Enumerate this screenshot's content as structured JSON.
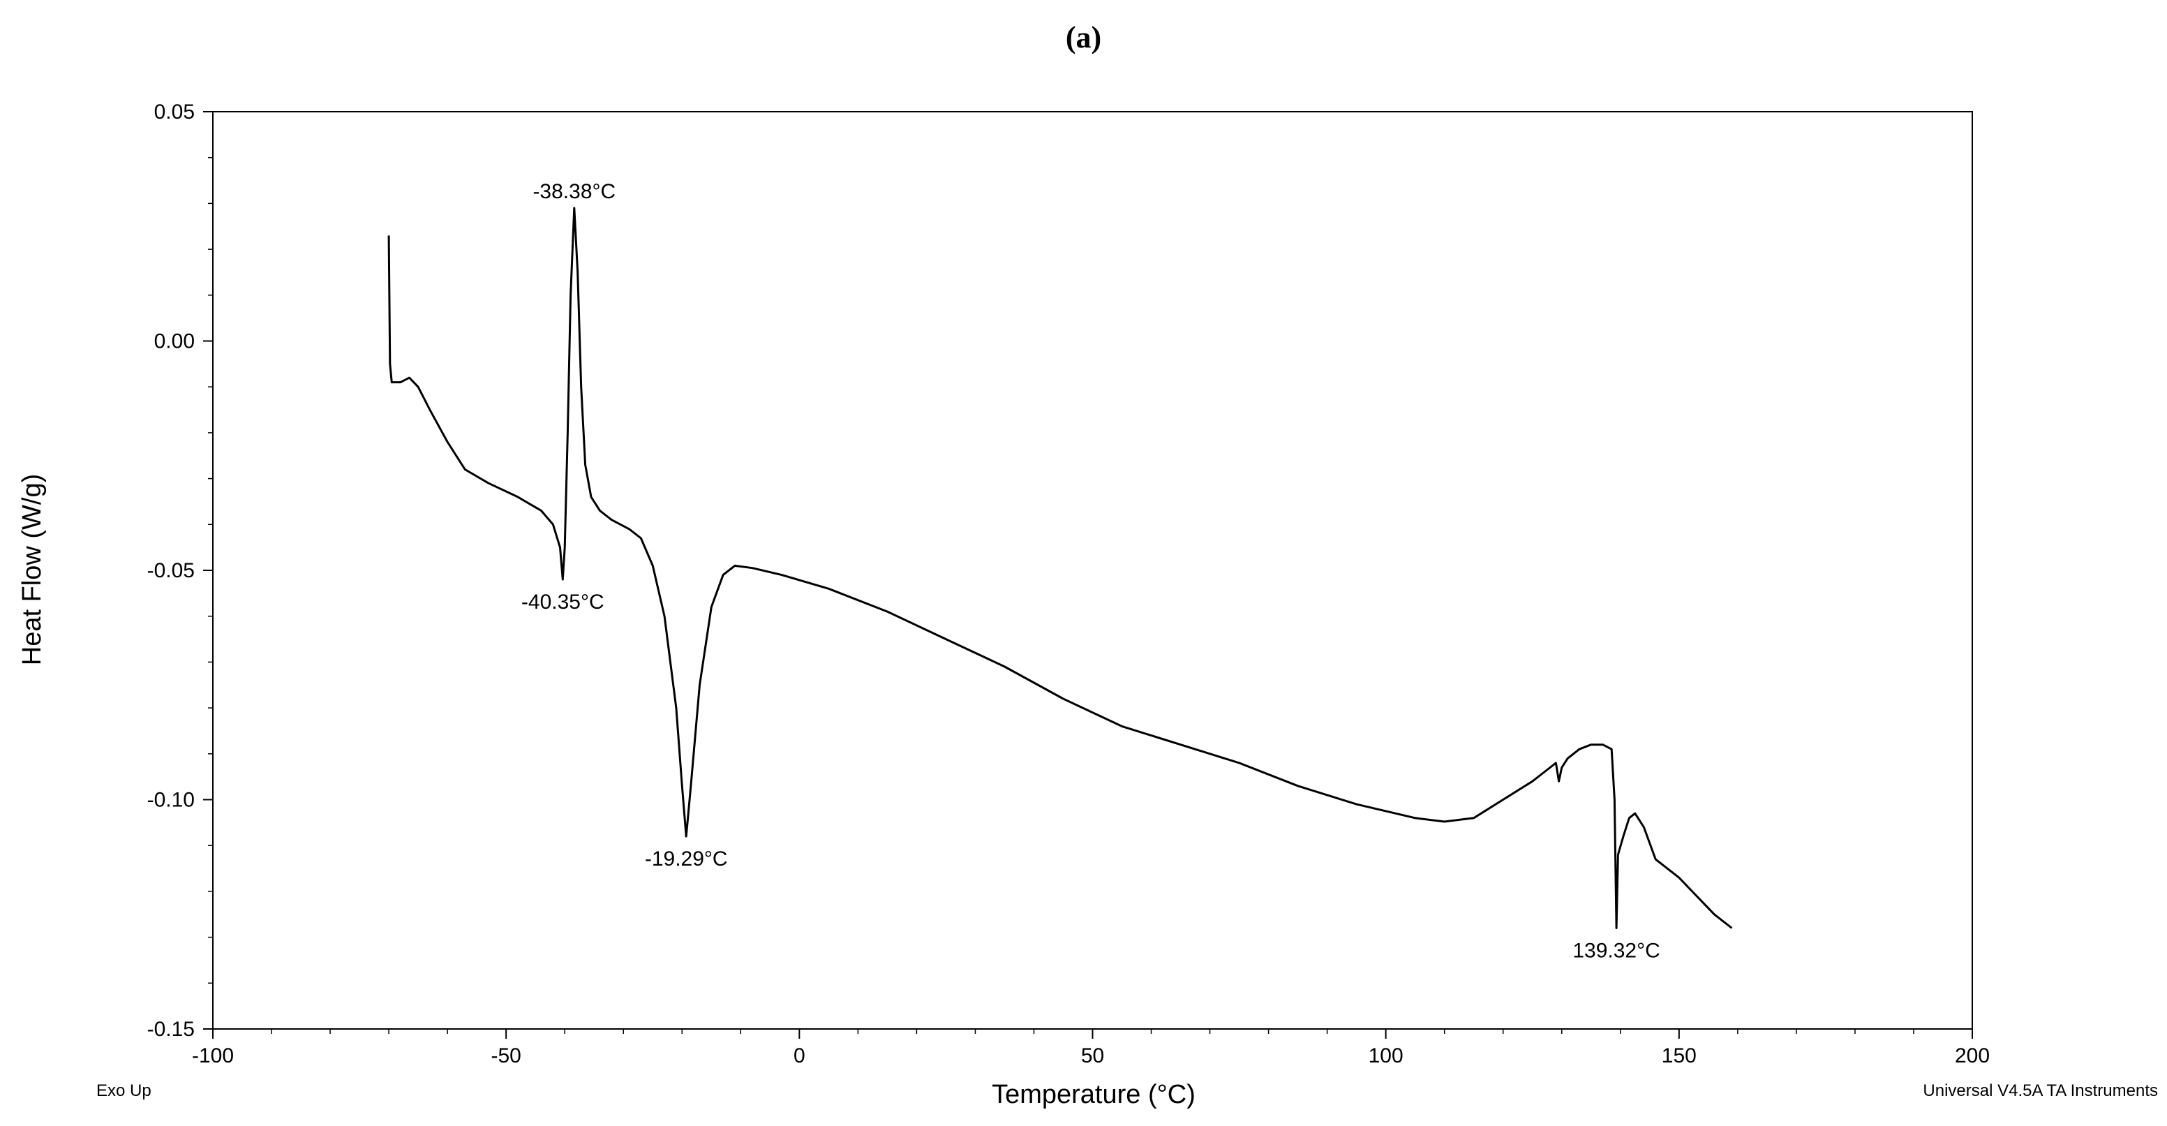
{
  "panel_label": "(a)",
  "footer": {
    "left": "Exo Up",
    "right": "Universal V4.5A TA Instruments"
  },
  "chart_data": {
    "type": "line",
    "title": "",
    "xlabel": "Temperature (°C)",
    "ylabel": "Heat Flow (W/g)",
    "xlim": [
      -100,
      200
    ],
    "ylim": [
      -0.15,
      0.05
    ],
    "xticks": [
      -100,
      -50,
      0,
      50,
      100,
      150,
      200
    ],
    "xtick_labels": [
      "-100",
      "-50",
      "0",
      "50",
      "100",
      "150",
      "200"
    ],
    "yticks": [
      -0.15,
      -0.1,
      -0.05,
      0.0,
      0.05
    ],
    "ytick_labels": [
      "-0.15",
      "-0.10",
      "-0.05",
      "0.00",
      "0.05"
    ],
    "grid": false,
    "series": [
      {
        "points": [
          [
            -70,
            0.023
          ],
          [
            -69.8,
            -0.005
          ],
          [
            -69.5,
            -0.009
          ],
          [
            -68,
            -0.009
          ],
          [
            -66.5,
            -0.008
          ],
          [
            -65,
            -0.01
          ],
          [
            -63,
            -0.015
          ],
          [
            -60,
            -0.022
          ],
          [
            -57,
            -0.028
          ],
          [
            -53,
            -0.031
          ],
          [
            -48,
            -0.034
          ],
          [
            -44,
            -0.037
          ],
          [
            -42,
            -0.04
          ],
          [
            -40.8,
            -0.045
          ],
          [
            -40.35,
            -0.052
          ],
          [
            -40.0,
            -0.045
          ],
          [
            -39.5,
            -0.02
          ],
          [
            -39.0,
            0.01
          ],
          [
            -38.38,
            0.029
          ],
          [
            -37.8,
            0.015
          ],
          [
            -37.2,
            -0.01
          ],
          [
            -36.5,
            -0.027
          ],
          [
            -35.5,
            -0.034
          ],
          [
            -34,
            -0.037
          ],
          [
            -32,
            -0.039
          ],
          [
            -29,
            -0.041
          ],
          [
            -27,
            -0.043
          ],
          [
            -25,
            -0.049
          ],
          [
            -23,
            -0.06
          ],
          [
            -21,
            -0.08
          ],
          [
            -20,
            -0.097
          ],
          [
            -19.29,
            -0.108
          ],
          [
            -18.5,
            -0.097
          ],
          [
            -17,
            -0.075
          ],
          [
            -15,
            -0.058
          ],
          [
            -13,
            -0.051
          ],
          [
            -11,
            -0.049
          ],
          [
            -8,
            -0.0495
          ],
          [
            -3,
            -0.051
          ],
          [
            5,
            -0.054
          ],
          [
            15,
            -0.059
          ],
          [
            25,
            -0.065
          ],
          [
            35,
            -0.071
          ],
          [
            45,
            -0.078
          ],
          [
            55,
            -0.084
          ],
          [
            65,
            -0.088
          ],
          [
            75,
            -0.092
          ],
          [
            85,
            -0.097
          ],
          [
            95,
            -0.101
          ],
          [
            105,
            -0.104
          ],
          [
            110,
            -0.1048
          ],
          [
            115,
            -0.104
          ],
          [
            120,
            -0.1
          ],
          [
            125,
            -0.096
          ],
          [
            128,
            -0.093
          ],
          [
            129,
            -0.092
          ],
          [
            129.5,
            -0.096
          ],
          [
            130,
            -0.093
          ],
          [
            131,
            -0.091
          ],
          [
            133,
            -0.089
          ],
          [
            135,
            -0.088
          ],
          [
            137,
            -0.088
          ],
          [
            138.5,
            -0.089
          ],
          [
            139.0,
            -0.1
          ],
          [
            139.32,
            -0.128
          ],
          [
            139.6,
            -0.112
          ],
          [
            140.5,
            -0.108
          ],
          [
            141.5,
            -0.104
          ],
          [
            142.5,
            -0.103
          ],
          [
            144,
            -0.106
          ],
          [
            146,
            -0.113
          ],
          [
            148,
            -0.115
          ],
          [
            150,
            -0.117
          ],
          [
            153,
            -0.121
          ],
          [
            156,
            -0.125
          ],
          [
            159,
            -0.128
          ]
        ]
      }
    ],
    "annotations": [
      {
        "text": "-38.38°C",
        "x": -38.38,
        "y": 0.029
      },
      {
        "text": "-40.35°C",
        "x": -40.35,
        "y": -0.052
      },
      {
        "text": "-19.29°C",
        "x": -19.29,
        "y": -0.108
      },
      {
        "text": "139.32°C",
        "x": 139.32,
        "y": -0.128
      }
    ]
  }
}
